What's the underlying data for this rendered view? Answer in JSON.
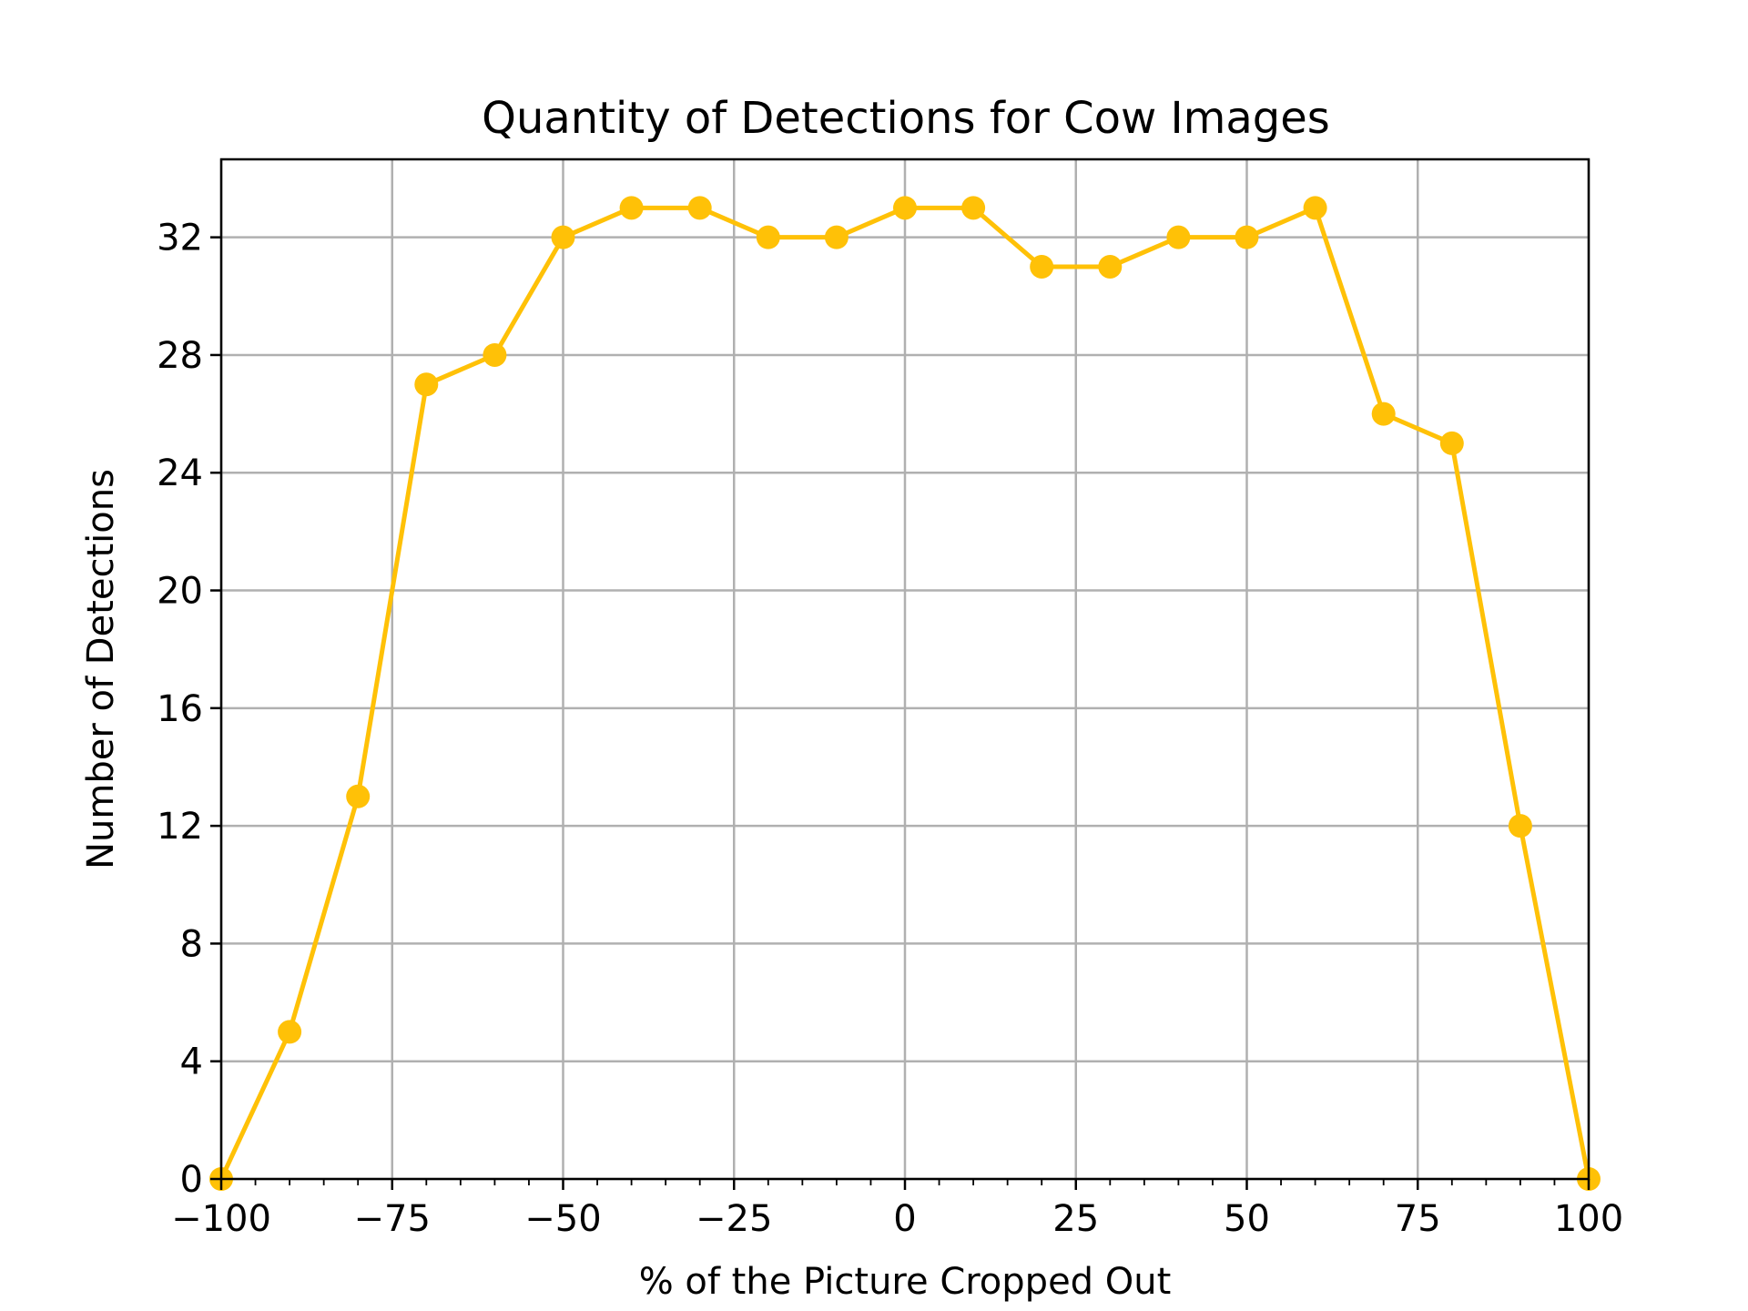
{
  "chart_data": {
    "type": "line",
    "title": "Quantity of Detections for Cow Images",
    "xlabel": "% of the Picture Cropped Out",
    "ylabel": "Number of Detections",
    "xlim": [
      -100,
      100
    ],
    "ylim": [
      0,
      34.65
    ],
    "x_ticks": [
      -100,
      -75,
      -50,
      -25,
      0,
      25,
      50,
      75,
      100
    ],
    "x_tick_labels": [
      "−100",
      "−75",
      "−50",
      "−25",
      "0",
      "25",
      "50",
      "75",
      "100"
    ],
    "x_minor_step": 5,
    "y_ticks": [
      0,
      4,
      8,
      12,
      16,
      20,
      24,
      28,
      32
    ],
    "y_tick_labels": [
      "0",
      "4",
      "8",
      "12",
      "16",
      "20",
      "24",
      "28",
      "32"
    ],
    "grid": true,
    "series": [
      {
        "color": "#FFC107",
        "x": [
          -100,
          -90,
          -80,
          -70,
          -60,
          -50,
          -40,
          -30,
          -20,
          -10,
          0,
          10,
          20,
          30,
          40,
          50,
          60,
          70,
          80,
          90,
          100
        ],
        "values": [
          0,
          5,
          13,
          27,
          28,
          32,
          33,
          33,
          32,
          32,
          33,
          33,
          31,
          31,
          32,
          32,
          33,
          26,
          25,
          12,
          0
        ]
      }
    ]
  }
}
